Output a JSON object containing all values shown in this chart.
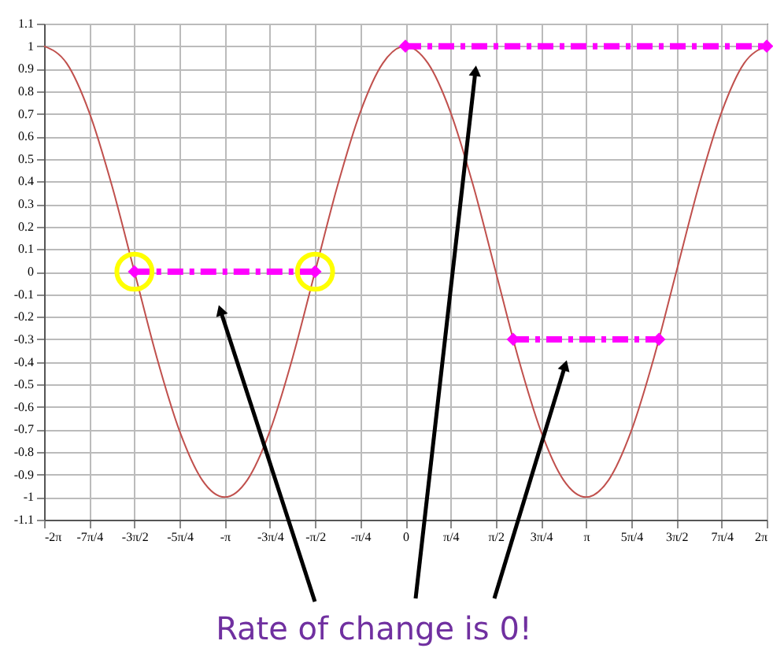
{
  "chart_data": {
    "type": "line",
    "x": [
      -6.283,
      -5.89,
      -5.498,
      -5.105,
      -4.712,
      -4.32,
      -3.927,
      -3.534,
      -3.142,
      -2.749,
      -2.356,
      -1.963,
      -1.571,
      -1.178,
      -0.785,
      -0.393,
      0,
      0.393,
      0.785,
      1.178,
      1.571,
      1.963,
      2.356,
      2.749,
      3.142,
      3.534,
      3.927,
      4.32,
      4.712,
      5.105,
      5.498,
      5.89,
      6.283
    ],
    "series": [
      {
        "color": "#c0504d",
        "marker": "none",
        "line_style": "solid",
        "values": [
          1,
          0.924,
          0.707,
          0.383,
          0,
          -0.383,
          -0.707,
          -0.924,
          -1,
          -0.924,
          -0.707,
          -0.383,
          0,
          0.383,
          0.707,
          0.924,
          1,
          0.924,
          0.707,
          0.383,
          0,
          -0.383,
          -0.707,
          -0.924,
          -1,
          -0.924,
          -0.707,
          -0.383,
          0,
          0.383,
          0.707,
          0.924,
          1
        ]
      },
      {
        "type": "line",
        "color": "#ff00ff",
        "marker": "diamond",
        "line_style": "dashed",
        "x": [
          -4.712,
          -1.571
        ],
        "values": [
          0,
          0
        ]
      },
      {
        "type": "line",
        "color": "#ff00ff",
        "marker": "diamond",
        "line_style": "dashed",
        "x": [
          0,
          6.283
        ],
        "values": [
          1,
          1
        ]
      },
      {
        "type": "line",
        "color": "#ff00ff",
        "marker": "diamond",
        "line_style": "dashed",
        "x": [
          1.875,
          4.408
        ],
        "values": [
          -0.3,
          -0.3
        ]
      },
      {
        "type": "scatter",
        "color": "#ffff00",
        "marker": "circle",
        "x": [
          -4.712,
          -1.571
        ],
        "values": [
          0,
          0
        ]
      }
    ],
    "xlim": [
      -6.283,
      6.283
    ],
    "xticks": [
      {
        "value": -6.283,
        "label": "-2π"
      },
      {
        "value": -5.498,
        "label": "-7π/4"
      },
      {
        "value": -4.712,
        "label": "-3π/2"
      },
      {
        "value": -3.927,
        "label": "-5π/4"
      },
      {
        "value": -3.142,
        "label": "-π"
      },
      {
        "value": -2.356,
        "label": "-3π/4"
      },
      {
        "value": -1.571,
        "label": "-π/2"
      },
      {
        "value": -0.785,
        "label": "-π/4"
      },
      0,
      {
        "value": 0.785,
        "label": "π/4"
      },
      {
        "value": 1.571,
        "label": "π/2"
      },
      {
        "value": 2.356,
        "label": "3π/4"
      },
      {
        "value": 3.142,
        "label": "π"
      },
      {
        "value": 3.927,
        "label": "5π/4"
      },
      {
        "value": 4.712,
        "label": "3π/2"
      },
      {
        "value": 5.498,
        "label": "7π/4"
      },
      {
        "value": 6.283,
        "label": "2π"
      }
    ],
    "ylim": [
      -1.1,
      1.1
    ],
    "yticks": [
      -1.1,
      -1,
      -0.9,
      -0.8,
      -0.7,
      -0.6,
      -0.5,
      -0.4,
      -0.3,
      -0.2,
      -0.1,
      0,
      0.1,
      0.2,
      0.3,
      0.4,
      0.5,
      0.6,
      0.7,
      0.8,
      0.9,
      1,
      1.1
    ],
    "grid": true,
    "annotations": [
      "Rate of change is 0!"
    ]
  }
}
